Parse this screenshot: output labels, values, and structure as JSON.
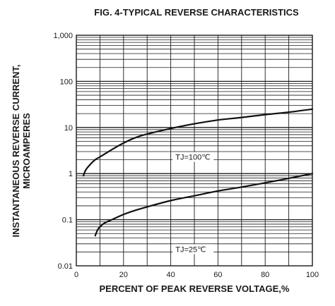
{
  "chart_data": {
    "type": "line",
    "title": "FIG. 4-TYPICAL REVERSE CHARACTERISTICS",
    "xlabel": "PERCENT OF PEAK REVERSE VOLTAGE,%",
    "ylabel_line1": "INSTANTANEOUS REVERSE CURRENT,",
    "ylabel_line2": "MICROAMPERES",
    "xlim": [
      0,
      100
    ],
    "ylim": [
      0.01,
      1000
    ],
    "y_scale": "log",
    "grid": true,
    "x_ticks": [
      {
        "value": 0,
        "label": "0"
      },
      {
        "value": 20,
        "label": "20"
      },
      {
        "value": 40,
        "label": "40"
      },
      {
        "value": 60,
        "label": "60"
      },
      {
        "value": 80,
        "label": "80"
      },
      {
        "value": 100,
        "label": "100"
      }
    ],
    "y_ticks": [
      {
        "value": 0.01,
        "label": "0.01"
      },
      {
        "value": 0.1,
        "label": "0.1"
      },
      {
        "value": 1,
        "label": "1"
      },
      {
        "value": 10,
        "label": "10"
      },
      {
        "value": 100,
        "label": "100"
      },
      {
        "value": 1000,
        "label": "1,000"
      }
    ],
    "series": [
      {
        "name": "TJ=100℃",
        "x": [
          3,
          4,
          6,
          8,
          10,
          15,
          20,
          25,
          30,
          40,
          50,
          60,
          70,
          80,
          90,
          100
        ],
        "y": [
          0.9,
          1.2,
          1.6,
          2.0,
          2.3,
          3.3,
          4.6,
          6.0,
          7.2,
          9.5,
          12.0,
          14.5,
          16.5,
          19.0,
          21.5,
          25.0
        ]
      },
      {
        "name": "TJ=25℃",
        "x": [
          8,
          9,
          10,
          12,
          15,
          20,
          25,
          30,
          40,
          50,
          60,
          70,
          80,
          90,
          100
        ],
        "y": [
          0.045,
          0.06,
          0.07,
          0.085,
          0.1,
          0.13,
          0.16,
          0.19,
          0.26,
          0.33,
          0.42,
          0.51,
          0.63,
          0.79,
          1.0
        ]
      }
    ],
    "annotations": [
      {
        "text": "TJ=100℃",
        "x": 42,
        "y": 2.3
      },
      {
        "text": "TJ=25℃",
        "x": 42,
        "y": 0.023
      }
    ]
  }
}
